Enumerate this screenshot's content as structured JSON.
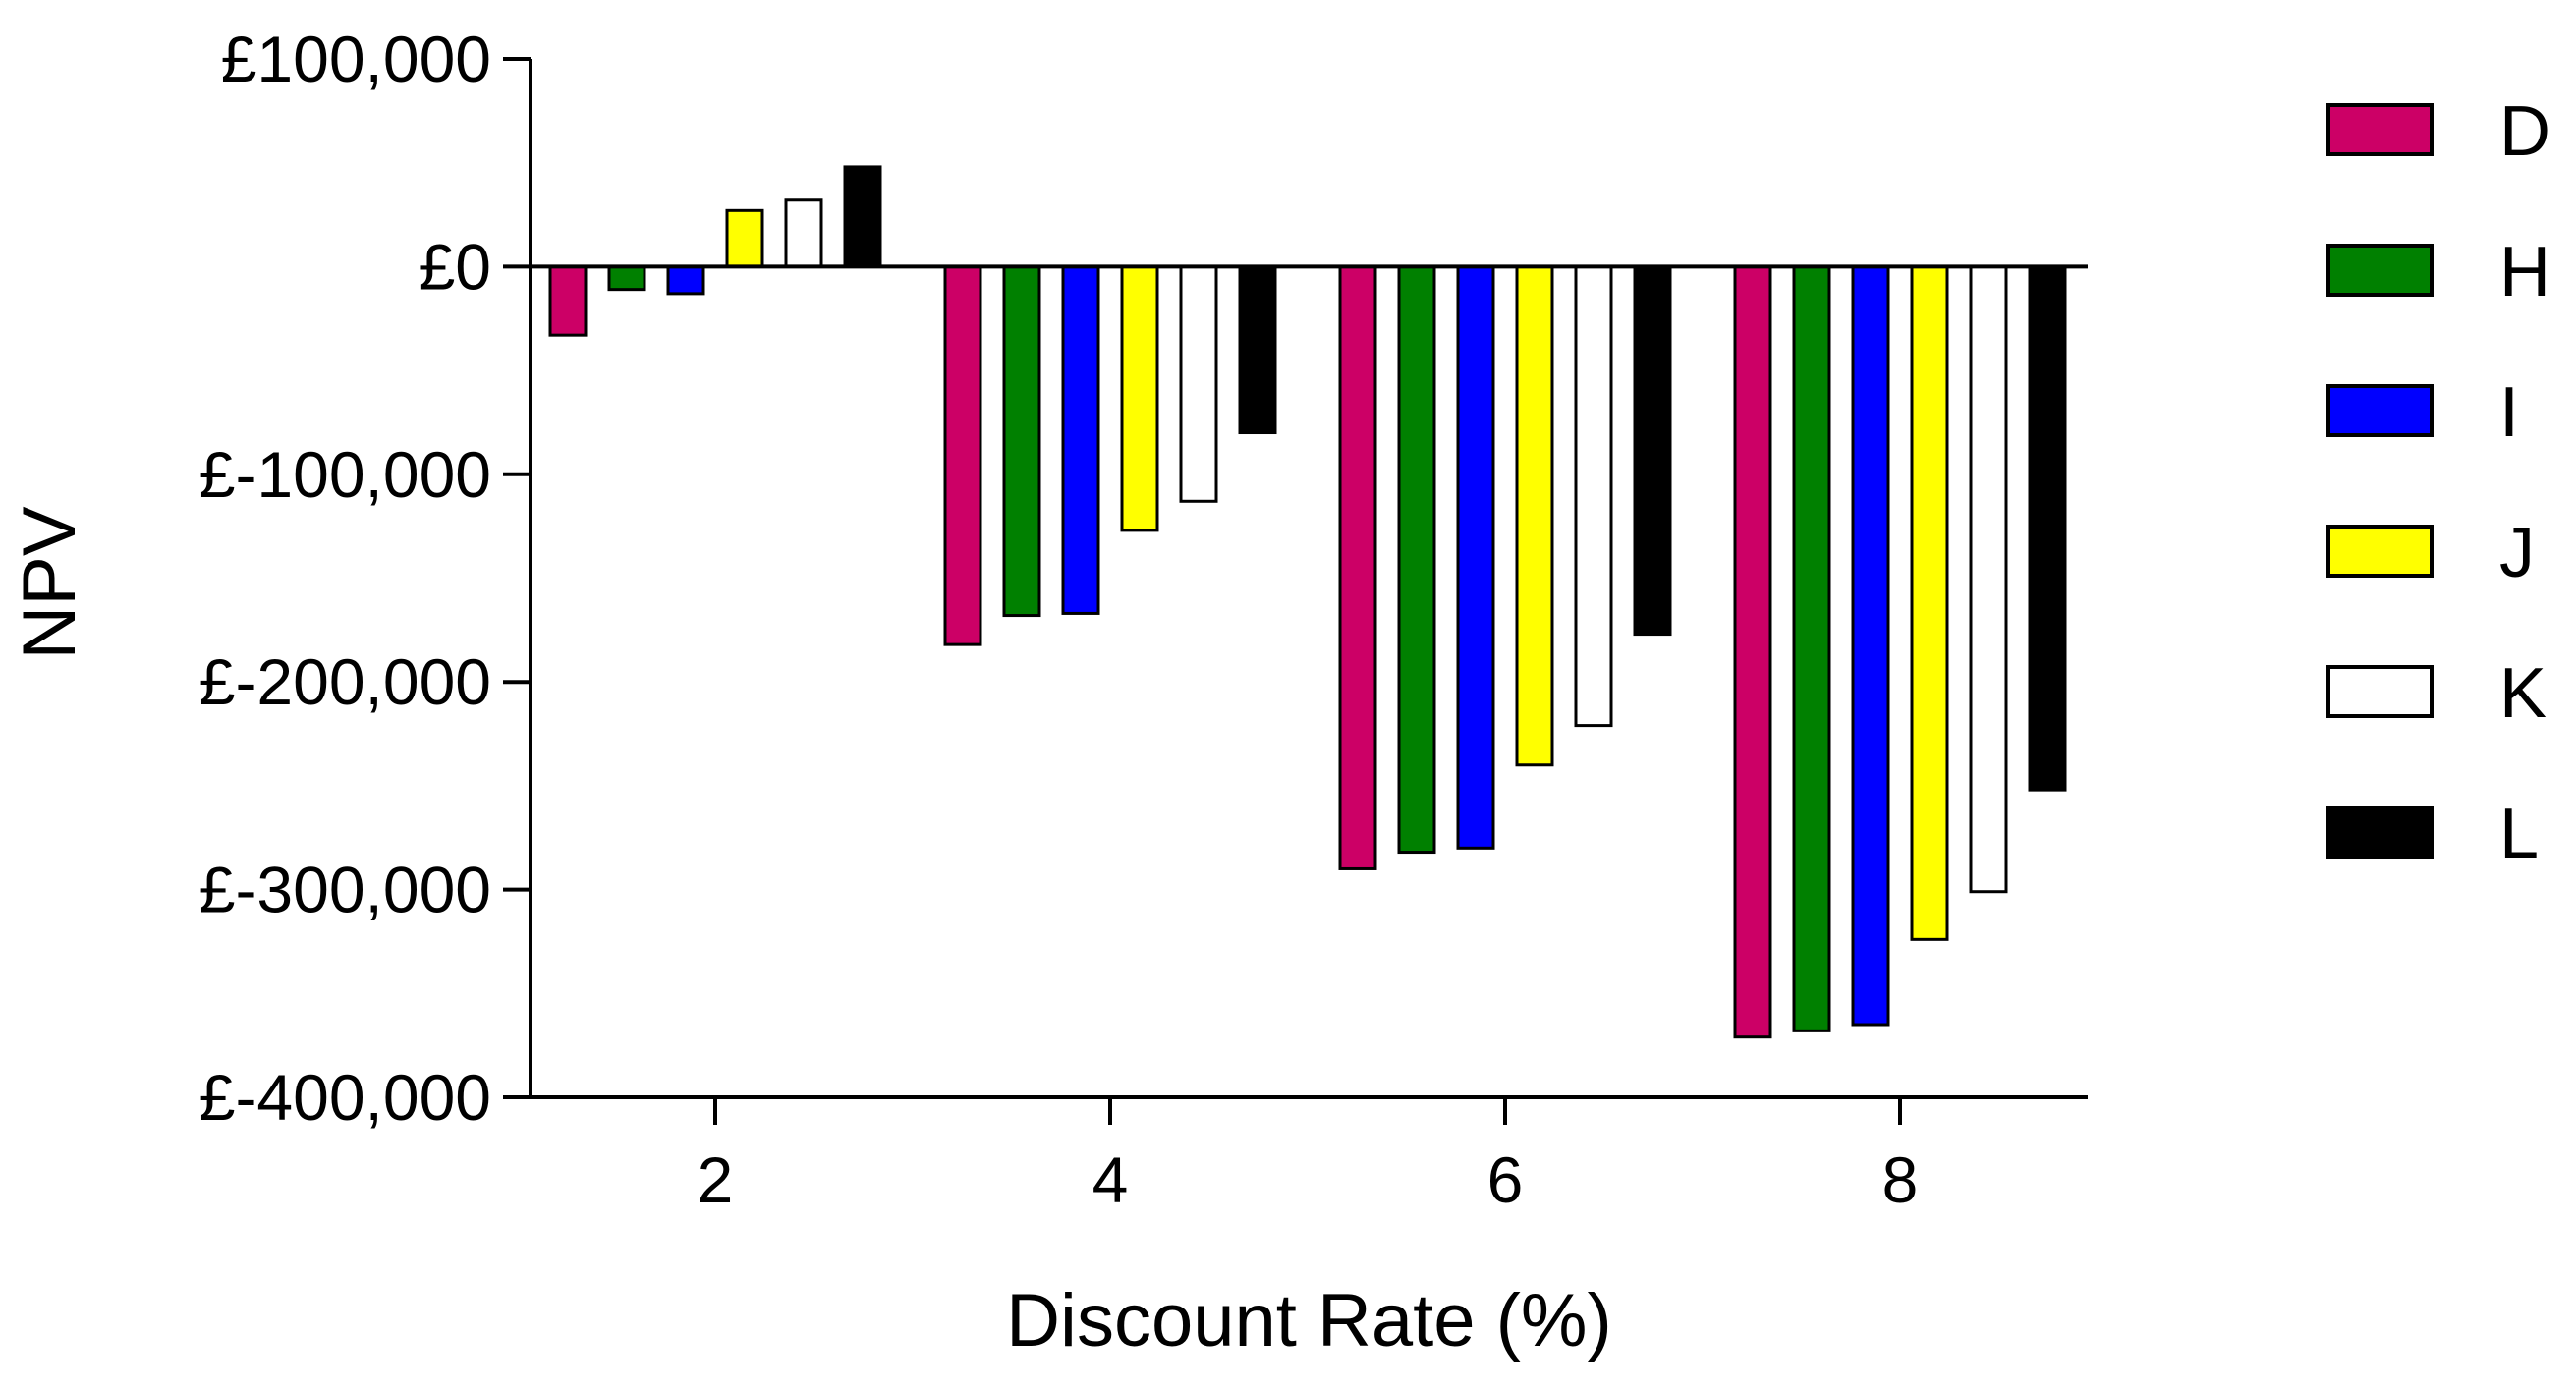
{
  "chart_data": {
    "type": "bar",
    "title": "",
    "xlabel": "Discount Rate (%)",
    "ylabel": "NPV",
    "categories": [
      "2",
      "4",
      "6",
      "8"
    ],
    "y_tick_labels": [
      "£100,000",
      "£0",
      "£-100,000",
      "£-200,000",
      "£-300,000",
      "£-400,000"
    ],
    "y_tick_values": [
      100000,
      0,
      -100000,
      -200000,
      -300000,
      -400000
    ],
    "ylim": [
      -400000,
      100000
    ],
    "grid": false,
    "legend_position": "right",
    "series": [
      {
        "name": "D",
        "color": "#cc0066",
        "values": [
          -33000,
          -182000,
          -290000,
          -371000
        ]
      },
      {
        "name": "H",
        "color": "#008000",
        "values": [
          -11000,
          -168000,
          -282000,
          -368000
        ]
      },
      {
        "name": "I",
        "color": "#0000ff",
        "values": [
          -13000,
          -167000,
          -280000,
          -365000
        ]
      },
      {
        "name": "J",
        "color": "#ffff00",
        "values": [
          27000,
          -127000,
          -240000,
          -324000
        ]
      },
      {
        "name": "K",
        "color": "#ffffff",
        "values": [
          32000,
          -113000,
          -221000,
          -301000
        ]
      },
      {
        "name": "L",
        "color": "#000000",
        "values": [
          48000,
          -80000,
          -177000,
          -252000
        ]
      }
    ]
  }
}
